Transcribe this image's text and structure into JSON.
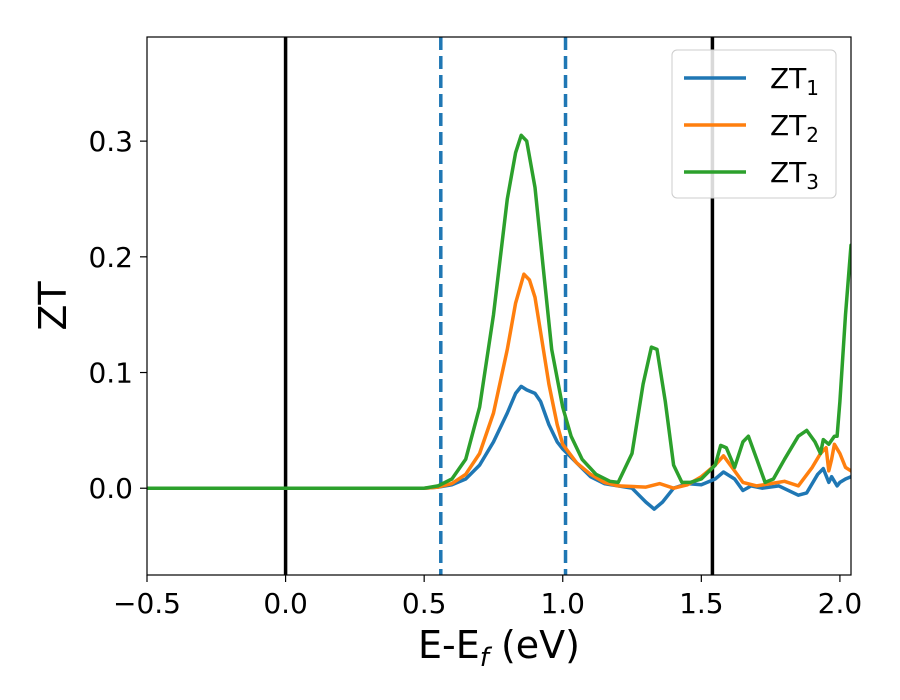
{
  "chart_data": {
    "type": "line",
    "xlabel_main": "E-E",
    "xlabel_sub": "f",
    "xlabel_tail": " (eV)",
    "ylabel": "ZT",
    "xlim": [
      -0.5,
      2.04
    ],
    "ylim": [
      -0.075,
      0.39
    ],
    "x_ticks": [
      -0.5,
      0.0,
      0.5,
      1.0,
      1.5,
      2.0
    ],
    "x_tick_labels": [
      "−0.5",
      "0.0",
      "0.5",
      "1.0",
      "1.5",
      "2.0"
    ],
    "y_ticks": [
      0.0,
      0.1,
      0.2,
      0.3
    ],
    "y_tick_labels": [
      "0.0",
      "0.1",
      "0.2",
      "0.3"
    ],
    "grid": false,
    "legend_position": "top-right",
    "vlines": [
      {
        "x": 0.0,
        "style": "solid",
        "color": "#000000"
      },
      {
        "x": 0.56,
        "style": "dashed",
        "color": "#1f77b4"
      },
      {
        "x": 1.01,
        "style": "dashed",
        "color": "#1f77b4"
      },
      {
        "x": 1.54,
        "style": "solid",
        "color": "#000000"
      }
    ],
    "series": [
      {
        "name": "ZT",
        "sub": "1",
        "color": "#1f77b4",
        "points": [
          [
            -0.5,
            0
          ],
          [
            0.5,
            0
          ],
          [
            0.55,
            0.001
          ],
          [
            0.6,
            0.003
          ],
          [
            0.65,
            0.008
          ],
          [
            0.7,
            0.02
          ],
          [
            0.75,
            0.04
          ],
          [
            0.8,
            0.065
          ],
          [
            0.83,
            0.082
          ],
          [
            0.85,
            0.088
          ],
          [
            0.87,
            0.085
          ],
          [
            0.9,
            0.082
          ],
          [
            0.92,
            0.075
          ],
          [
            0.95,
            0.055
          ],
          [
            0.98,
            0.04
          ],
          [
            1.0,
            0.034
          ],
          [
            1.05,
            0.022
          ],
          [
            1.1,
            0.01
          ],
          [
            1.15,
            0.004
          ],
          [
            1.2,
            0.002
          ],
          [
            1.25,
            0.0
          ],
          [
            1.3,
            -0.012
          ],
          [
            1.33,
            -0.018
          ],
          [
            1.36,
            -0.012
          ],
          [
            1.4,
            0.0
          ],
          [
            1.45,
            0.004
          ],
          [
            1.5,
            0.003
          ],
          [
            1.55,
            0.008
          ],
          [
            1.58,
            0.014
          ],
          [
            1.62,
            0.008
          ],
          [
            1.65,
            -0.002
          ],
          [
            1.68,
            0.002
          ],
          [
            1.72,
            0.0
          ],
          [
            1.78,
            0.002
          ],
          [
            1.85,
            -0.006
          ],
          [
            1.88,
            -0.004
          ],
          [
            1.92,
            0.012
          ],
          [
            1.94,
            0.017
          ],
          [
            1.96,
            0.005
          ],
          [
            1.97,
            0.01
          ],
          [
            1.99,
            0.002
          ],
          [
            2.0,
            0.005
          ],
          [
            2.02,
            0.008
          ],
          [
            2.04,
            0.01
          ]
        ]
      },
      {
        "name": "ZT",
        "sub": "2",
        "color": "#ff7f0e",
        "points": [
          [
            -0.5,
            0
          ],
          [
            0.5,
            0
          ],
          [
            0.55,
            0.001
          ],
          [
            0.6,
            0.004
          ],
          [
            0.65,
            0.012
          ],
          [
            0.7,
            0.03
          ],
          [
            0.75,
            0.065
          ],
          [
            0.8,
            0.12
          ],
          [
            0.83,
            0.16
          ],
          [
            0.86,
            0.185
          ],
          [
            0.88,
            0.18
          ],
          [
            0.9,
            0.165
          ],
          [
            0.92,
            0.135
          ],
          [
            0.95,
            0.09
          ],
          [
            0.98,
            0.055
          ],
          [
            1.0,
            0.038
          ],
          [
            1.05,
            0.022
          ],
          [
            1.1,
            0.012
          ],
          [
            1.15,
            0.005
          ],
          [
            1.2,
            0.002
          ],
          [
            1.3,
            0.001
          ],
          [
            1.35,
            0.004
          ],
          [
            1.4,
            0.0
          ],
          [
            1.45,
            0.003
          ],
          [
            1.5,
            0.01
          ],
          [
            1.55,
            0.02
          ],
          [
            1.58,
            0.028
          ],
          [
            1.62,
            0.015
          ],
          [
            1.65,
            0.005
          ],
          [
            1.7,
            0.002
          ],
          [
            1.75,
            0.004
          ],
          [
            1.8,
            0.006
          ],
          [
            1.85,
            0.002
          ],
          [
            1.9,
            0.018
          ],
          [
            1.93,
            0.03
          ],
          [
            1.95,
            0.035
          ],
          [
            1.96,
            0.015
          ],
          [
            1.97,
            0.025
          ],
          [
            1.98,
            0.038
          ],
          [
            2.0,
            0.03
          ],
          [
            2.02,
            0.018
          ],
          [
            2.04,
            0.015
          ]
        ]
      },
      {
        "name": "ZT",
        "sub": "3",
        "color": "#2ca02c",
        "points": [
          [
            -0.5,
            0
          ],
          [
            0.5,
            0
          ],
          [
            0.55,
            0.002
          ],
          [
            0.6,
            0.008
          ],
          [
            0.65,
            0.025
          ],
          [
            0.7,
            0.07
          ],
          [
            0.75,
            0.15
          ],
          [
            0.8,
            0.25
          ],
          [
            0.83,
            0.29
          ],
          [
            0.85,
            0.305
          ],
          [
            0.87,
            0.3
          ],
          [
            0.9,
            0.26
          ],
          [
            0.93,
            0.19
          ],
          [
            0.96,
            0.12
          ],
          [
            1.0,
            0.07
          ],
          [
            1.03,
            0.045
          ],
          [
            1.07,
            0.025
          ],
          [
            1.12,
            0.012
          ],
          [
            1.17,
            0.006
          ],
          [
            1.2,
            0.005
          ],
          [
            1.25,
            0.03
          ],
          [
            1.29,
            0.09
          ],
          [
            1.32,
            0.122
          ],
          [
            1.34,
            0.12
          ],
          [
            1.37,
            0.075
          ],
          [
            1.4,
            0.02
          ],
          [
            1.43,
            0.005
          ],
          [
            1.46,
            0.005
          ],
          [
            1.5,
            0.008
          ],
          [
            1.55,
            0.02
          ],
          [
            1.57,
            0.037
          ],
          [
            1.59,
            0.035
          ],
          [
            1.62,
            0.018
          ],
          [
            1.65,
            0.04
          ],
          [
            1.67,
            0.045
          ],
          [
            1.7,
            0.025
          ],
          [
            1.73,
            0.005
          ],
          [
            1.76,
            0.008
          ],
          [
            1.8,
            0.025
          ],
          [
            1.85,
            0.045
          ],
          [
            1.88,
            0.05
          ],
          [
            1.91,
            0.04
          ],
          [
            1.93,
            0.03
          ],
          [
            1.94,
            0.042
          ],
          [
            1.96,
            0.038
          ],
          [
            1.98,
            0.045
          ],
          [
            1.99,
            0.045
          ],
          [
            2.0,
            0.075
          ],
          [
            2.02,
            0.15
          ],
          [
            2.04,
            0.21
          ]
        ]
      }
    ]
  }
}
